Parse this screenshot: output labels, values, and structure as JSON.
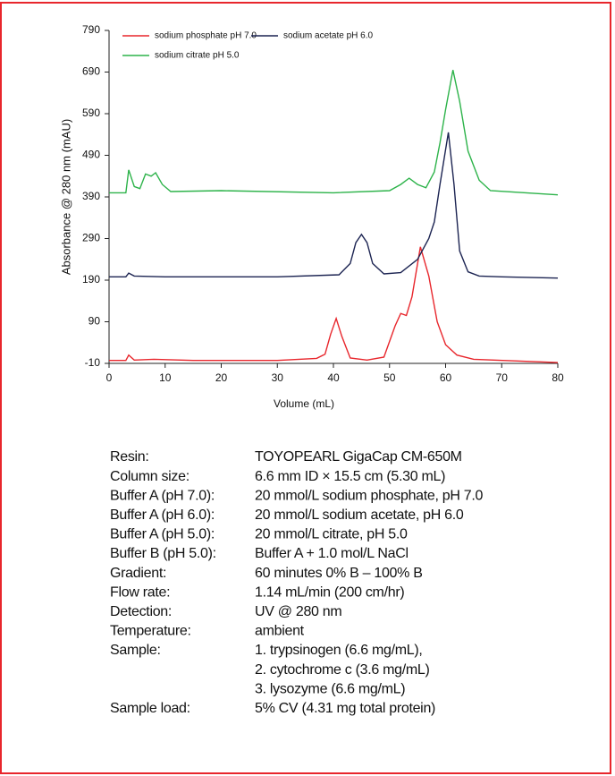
{
  "chart_data": {
    "type": "line",
    "x_label": "Volume (mL)",
    "y_label": "Absorbance @ 280 nm (mAU)",
    "xlim": [
      0,
      80
    ],
    "xticks": [
      0,
      10,
      20,
      30,
      40,
      50,
      60,
      70,
      80
    ],
    "ylim": [
      -10,
      790
    ],
    "yticks": [
      -10,
      90,
      190,
      290,
      390,
      490,
      590,
      690,
      790
    ],
    "series": [
      {
        "name": "sodium phosphate pH 7.0",
        "color": "#e8262c",
        "x": [
          0,
          3,
          3.5,
          4.5,
          8,
          15,
          30,
          37,
          38.5,
          39.5,
          40.5,
          41.5,
          43,
          46,
          49,
          51,
          52,
          53,
          54,
          55.5,
          57,
          58.5,
          60,
          62,
          65,
          80
        ],
        "values": [
          -3,
          -3,
          10,
          -2,
          0,
          -3,
          -3,
          2,
          12,
          60,
          98,
          55,
          3,
          -2,
          5,
          80,
          110,
          105,
          150,
          270,
          200,
          90,
          35,
          10,
          0,
          -8
        ]
      },
      {
        "name": "sodium acetate pH 6.0",
        "color": "#1c2452",
        "x": [
          0,
          3,
          3.5,
          4.5,
          10,
          30,
          41,
          43,
          44,
          45,
          46,
          47,
          49,
          52,
          55,
          57,
          58,
          59,
          60.5,
          61.5,
          62.5,
          64,
          66,
          70,
          80
        ],
        "values": [
          198,
          198,
          207,
          200,
          198,
          198,
          203,
          230,
          280,
          300,
          280,
          230,
          205,
          208,
          240,
          290,
          330,
          420,
          545,
          420,
          260,
          210,
          200,
          198,
          195
        ]
      },
      {
        "name": "sodium citrate pH 5.0",
        "color": "#2db34a",
        "x": [
          0,
          3,
          3.5,
          4.5,
          5.5,
          6.5,
          7.5,
          8.3,
          9.5,
          11,
          20,
          40,
          50,
          52,
          53.5,
          55,
          56.5,
          58,
          59,
          60,
          61.3,
          62.5,
          64,
          66,
          68,
          80
        ],
        "values": [
          400,
          400,
          455,
          415,
          410,
          445,
          440,
          448,
          420,
          403,
          405,
          400,
          405,
          420,
          435,
          420,
          412,
          450,
          520,
          600,
          695,
          620,
          500,
          430,
          405,
          395
        ]
      }
    ]
  },
  "conditions": {
    "rows": [
      {
        "label": "Resin:",
        "lines": [
          "TOYOPEARL GigaCap CM-650M"
        ]
      },
      {
        "label": "Column size:",
        "lines": [
          "6.6 mm ID × 15.5 cm (5.30 mL)"
        ]
      },
      {
        "label": "Buffer A (pH 7.0):",
        "lines": [
          "20 mmol/L sodium phosphate, pH 7.0"
        ]
      },
      {
        "label": "Buffer A (pH 6.0):",
        "lines": [
          "20 mmol/L sodium acetate, pH 6.0"
        ]
      },
      {
        "label": "Buffer A (pH 5.0):",
        "lines": [
          "20 mmol/L citrate, pH 5.0"
        ]
      },
      {
        "label": "Buffer B (pH 5.0):",
        "lines": [
          "Buffer A + 1.0 mol/L NaCl"
        ]
      },
      {
        "label": "Gradient:",
        "lines": [
          "60 minutes 0% B – 100% B"
        ]
      },
      {
        "label": "Flow rate:",
        "lines": [
          "1.14 mL/min (200 cm/hr)"
        ]
      },
      {
        "label": "Detection:",
        "lines": [
          "UV @ 280 nm"
        ]
      },
      {
        "label": "Temperature:",
        "lines": [
          "ambient"
        ]
      },
      {
        "label": "Sample:",
        "lines": [
          "1. trypsinogen (6.6 mg/mL),",
          "2. cytochrome c (3.6 mg/mL)",
          "3. lysozyme (6.6 mg/mL)"
        ]
      },
      {
        "label": "Sample load:",
        "lines": [
          "5% CV (4.31 mg total protein)"
        ]
      }
    ]
  }
}
